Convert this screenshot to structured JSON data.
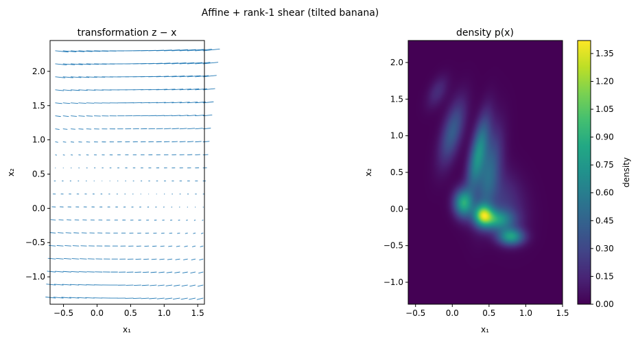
{
  "figure": {
    "suptitle": "Affine + rank-1 shear (tilted banana)"
  },
  "chart_data": [
    {
      "type": "quiver",
      "title": "transformation   z − x",
      "xlabel": "x₁",
      "ylabel": "x₂",
      "xlim": [
        -0.7,
        1.6
      ],
      "ylim": [
        -1.4,
        2.45
      ],
      "xticks": [
        "−0.5",
        "0.0",
        "0.5",
        "1.0",
        "1.5"
      ],
      "xtick_values": [
        -0.5,
        0.0,
        0.5,
        1.0,
        1.5
      ],
      "yticks": [
        "−1.0",
        "−0.5",
        "0.0",
        "0.5",
        "1.0",
        "1.5",
        "2.0"
      ],
      "ytick_values": [
        -1.0,
        -0.5,
        0.0,
        0.5,
        1.0,
        1.5,
        2.0
      ],
      "grid": false,
      "arrow_color": "#1f77b4",
      "grid_x": {
        "start": -0.62,
        "stop": 1.58,
        "count": 20
      },
      "grid_y": {
        "start": -1.31,
        "stop": 2.3,
        "count": 20
      },
      "field": {
        "center": [
          0.3,
          0.35
        ],
        "shear_per_y": 0.18,
        "shear_y_sq": 0.02,
        "scale_x": 0.1,
        "scale_y": 0.025
      }
    },
    {
      "type": "heatmap",
      "title": "density   p(x)",
      "xlabel": "x₁",
      "ylabel": "x₂",
      "xlim": [
        -0.6,
        1.5
      ],
      "ylim": [
        -1.3,
        2.3
      ],
      "xticks": [
        "−0.5",
        "0.0",
        "0.5",
        "1.0",
        "1.5"
      ],
      "xtick_values": [
        -0.5,
        0.0,
        0.5,
        1.0,
        1.5
      ],
      "yticks": [
        "−1.0",
        "−0.5",
        "0.0",
        "0.5",
        "1.0",
        "1.5",
        "2.0"
      ],
      "ytick_values": [
        -1.0,
        -0.5,
        0.0,
        0.5,
        1.0,
        1.5,
        2.0
      ],
      "grid": false,
      "colormap": "viridis",
      "peak_location": [
        0.42,
        -0.08
      ],
      "peak_value": 1.42,
      "components": [
        {
          "mu": [
            0.42,
            -0.08
          ],
          "sigma": [
            0.09,
            0.1
          ],
          "rho": 0.0,
          "weight": 0.6
        },
        {
          "mu": [
            0.15,
            0.08
          ],
          "sigma": [
            0.09,
            0.13
          ],
          "rho": 0.0,
          "weight": 0.55
        },
        {
          "mu": [
            0.8,
            -0.38
          ],
          "sigma": [
            0.12,
            0.08
          ],
          "rho": 0.0,
          "weight": 0.5
        },
        {
          "mu": [
            0.6,
            -0.15
          ],
          "sigma": [
            0.16,
            0.1
          ],
          "rho": 0.0,
          "weight": 0.45
        },
        {
          "mu": [
            0.35,
            0.75
          ],
          "sigma": [
            0.1,
            0.35
          ],
          "rho": 0.65,
          "weight": 0.45
        },
        {
          "mu": [
            0.5,
            0.5
          ],
          "sigma": [
            0.12,
            0.4
          ],
          "rho": 0.5,
          "weight": 0.3
        },
        {
          "mu": [
            0.0,
            1.05
          ],
          "sigma": [
            0.12,
            0.3
          ],
          "rho": 0.6,
          "weight": 0.28
        },
        {
          "mu": [
            -0.2,
            1.6
          ],
          "sigma": [
            0.1,
            0.15
          ],
          "rho": 0.5,
          "weight": 0.12
        },
        {
          "mu": [
            0.7,
            0.1
          ],
          "sigma": [
            0.2,
            0.3
          ],
          "rho": -0.2,
          "weight": 0.15
        }
      ],
      "colorbar": {
        "label": "density",
        "min": 0.0,
        "max": 1.42,
        "ticks": [
          "0.00",
          "0.15",
          "0.30",
          "0.45",
          "0.60",
          "0.75",
          "0.90",
          "1.05",
          "1.20",
          "1.35"
        ],
        "tick_values": [
          0.0,
          0.15,
          0.3,
          0.45,
          0.6,
          0.75,
          0.9,
          1.05,
          1.2,
          1.35
        ]
      }
    }
  ]
}
